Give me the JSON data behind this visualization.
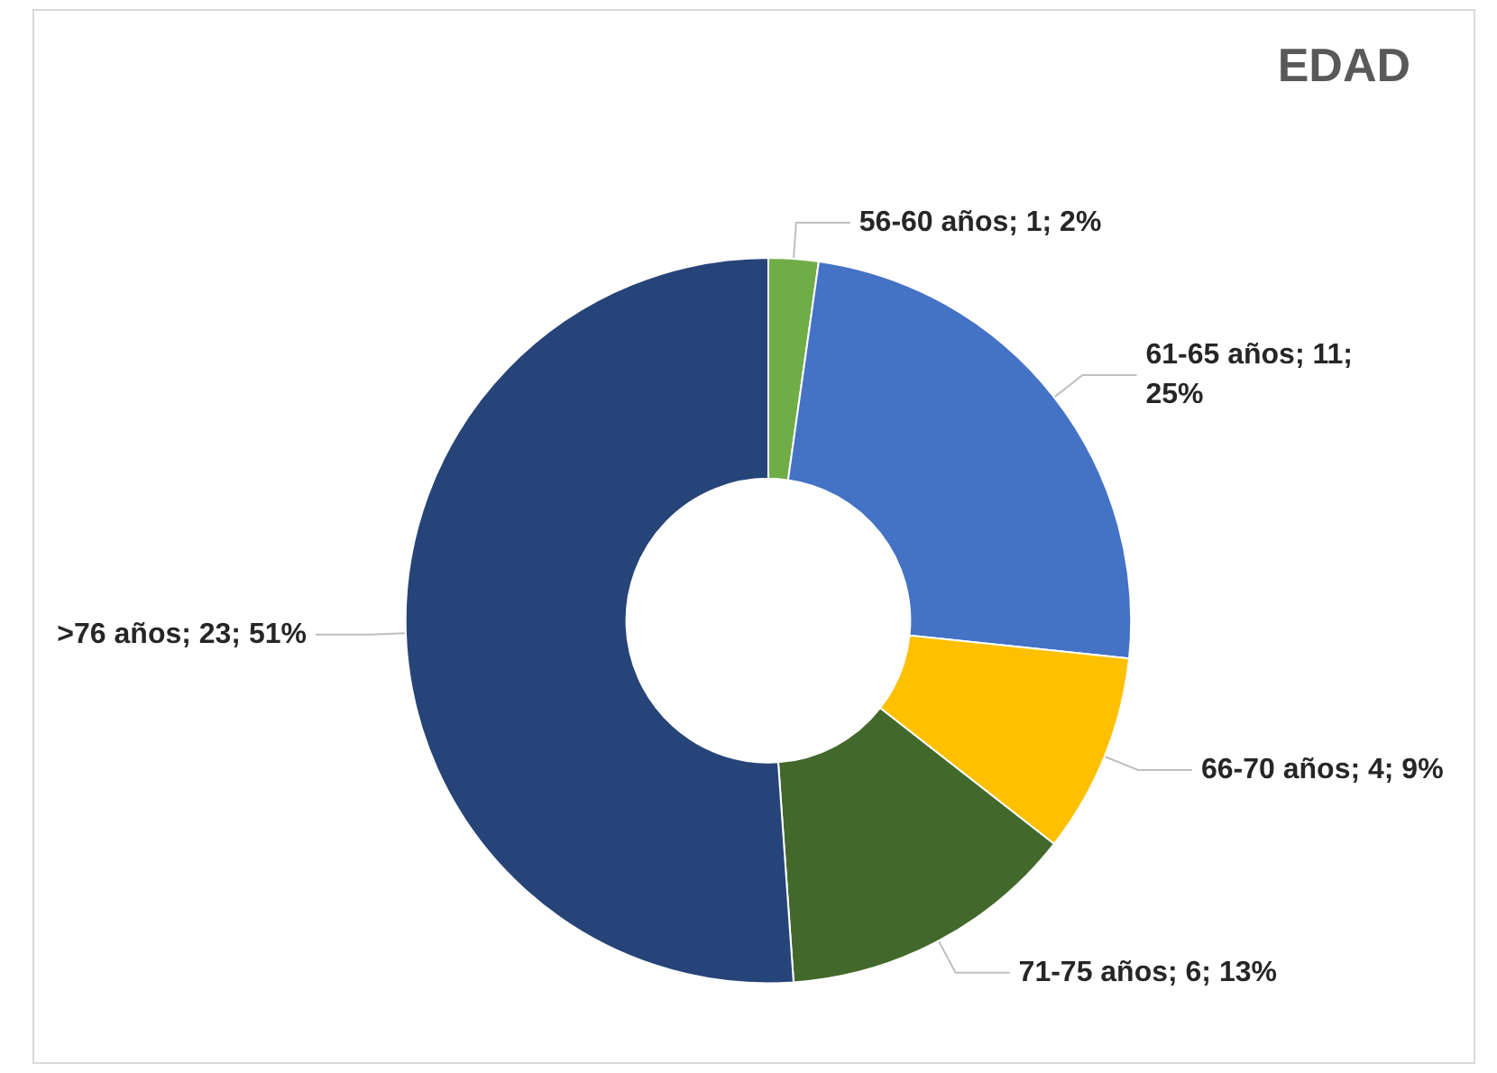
{
  "chart_data": {
    "type": "donut",
    "title": "EDAD",
    "categories": [
      "56-60 años",
      "61-65 años",
      "66-70 años",
      "71-75 años",
      ">76 años"
    ],
    "values": [
      1,
      11,
      4,
      6,
      23
    ],
    "value_labels": [
      "1; 2%",
      "11; 25%",
      "4; 9%",
      "6; 13%",
      "23; 51%"
    ],
    "colors": [
      "#70ad47",
      "#4472c4",
      "#ffc000",
      "#43682b",
      "#264478"
    ],
    "legend": false
  }
}
